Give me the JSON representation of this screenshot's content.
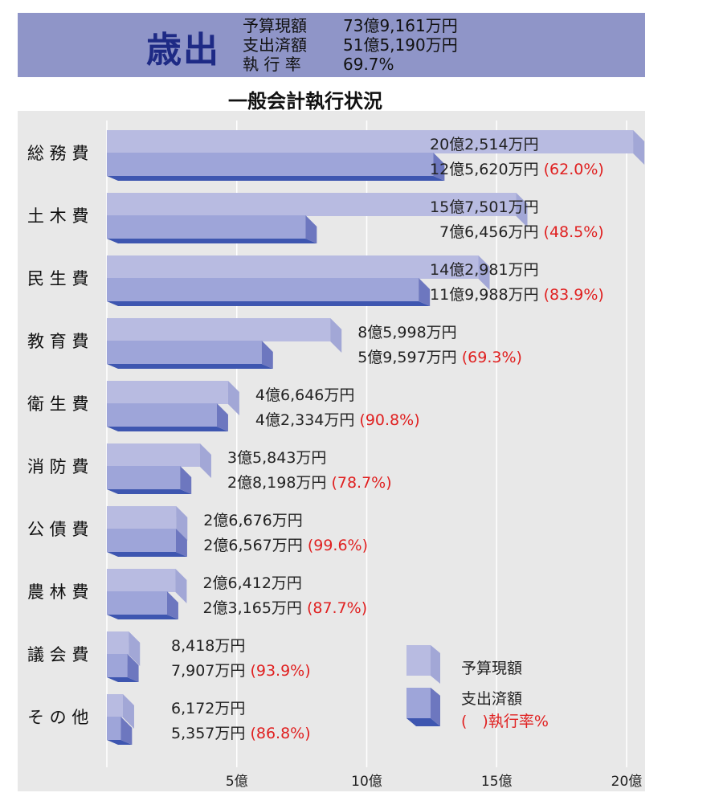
{
  "header": {
    "title": "歳出",
    "rows": [
      {
        "label": "予算現額",
        "value": "73億9,161万円"
      },
      {
        "label": "支出済額",
        "value": "51億5,190万円"
      },
      {
        "label": "執 行 率",
        "value": "69.7%"
      }
    ]
  },
  "chart_data": {
    "type": "bar",
    "orientation": "horizontal",
    "title": "一般会計執行状況",
    "categories": [
      "総 務 費",
      "土 木 費",
      "民 生 費",
      "教 育 費",
      "衛 生 費",
      "消 防 費",
      "公 債 費",
      "農 林 費",
      "議 会 費",
      "そ の 他"
    ],
    "series": [
      {
        "name": "予算現額",
        "values": [
          20.2514,
          15.7501,
          14.2981,
          8.5998,
          4.6646,
          3.5843,
          2.6676,
          2.6412,
          0.8418,
          0.6172
        ]
      },
      {
        "name": "支出済額",
        "values": [
          12.562,
          7.6456,
          11.9988,
          5.9597,
          4.2334,
          2.8198,
          2.6567,
          2.3165,
          0.7907,
          0.5357
        ]
      }
    ],
    "budget_labels": [
      "20億2,514万円",
      "15億7,501万円",
      "14億2,981万円",
      "8億5,998万円",
      "4億6,646万円",
      "3億5,843万円",
      "2億6,676万円",
      "2億6,412万円",
      "8,418万円",
      "6,172万円"
    ],
    "spent_labels": [
      "12億5,620万円",
      "7億6,456万円",
      "11億9,988万円",
      "5億9,597万円",
      "4億2,334万円",
      "2億8,198万円",
      "2億6,567万円",
      "2億3,165万円",
      "7,907万円",
      "5,357万円"
    ],
    "rate_labels": [
      "(62.0%)",
      "(48.5%)",
      "(83.9%)",
      "(69.3%)",
      "(90.8%)",
      "(78.7%)",
      "(99.6%)",
      "(87.7%)",
      "(93.9%)",
      "(86.8%)"
    ],
    "x_ticks": [
      5,
      10,
      15,
      20
    ],
    "x_tick_labels": [
      "5億",
      "10億",
      "15億",
      "20億"
    ],
    "xlim": [
      0,
      20.5
    ],
    "legend": {
      "position": "bottom-right",
      "budget": "予算現額",
      "spent": "支出済額",
      "rate": "(　)執行率%"
    },
    "colors": {
      "budget_face": "#b8bbe1",
      "budget_side": "#a2a7d6",
      "budget_top": "#cdd0ec",
      "spent_face": "#9ea5d9",
      "spent_side": "#6d77bf",
      "spent_bottom": "#3e56b0",
      "rate_text": "#e02020",
      "panel": "#e8e8e8"
    }
  }
}
